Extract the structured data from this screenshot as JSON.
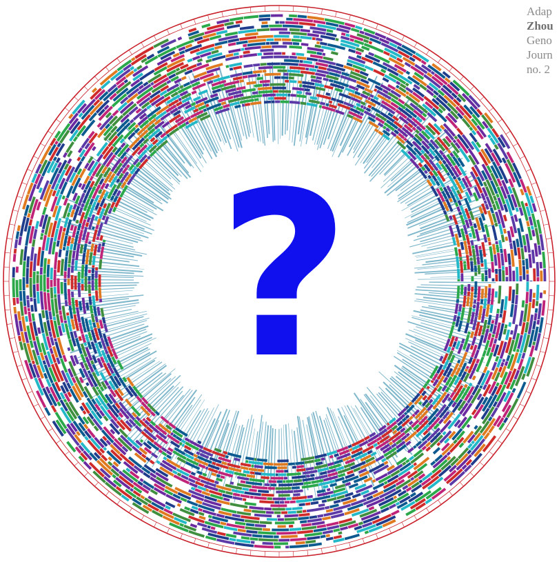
{
  "citation": {
    "lines": [
      "Adap",
      "Zhou",
      "Geno",
      "Journ",
      "no. 2"
    ]
  },
  "center_mark": "?",
  "colors": {
    "outer_ring": "#c9212b",
    "spokes": "#7fb7cb",
    "question_mark": "#1010ee",
    "palette": [
      "#1f3d8c",
      "#2aa84a",
      "#d02b2b",
      "#6a2aa0",
      "#22b8c8",
      "#c02478",
      "#0d5a90",
      "#3f8f3f",
      "#e07a20",
      "#5b3aa8"
    ]
  }
}
